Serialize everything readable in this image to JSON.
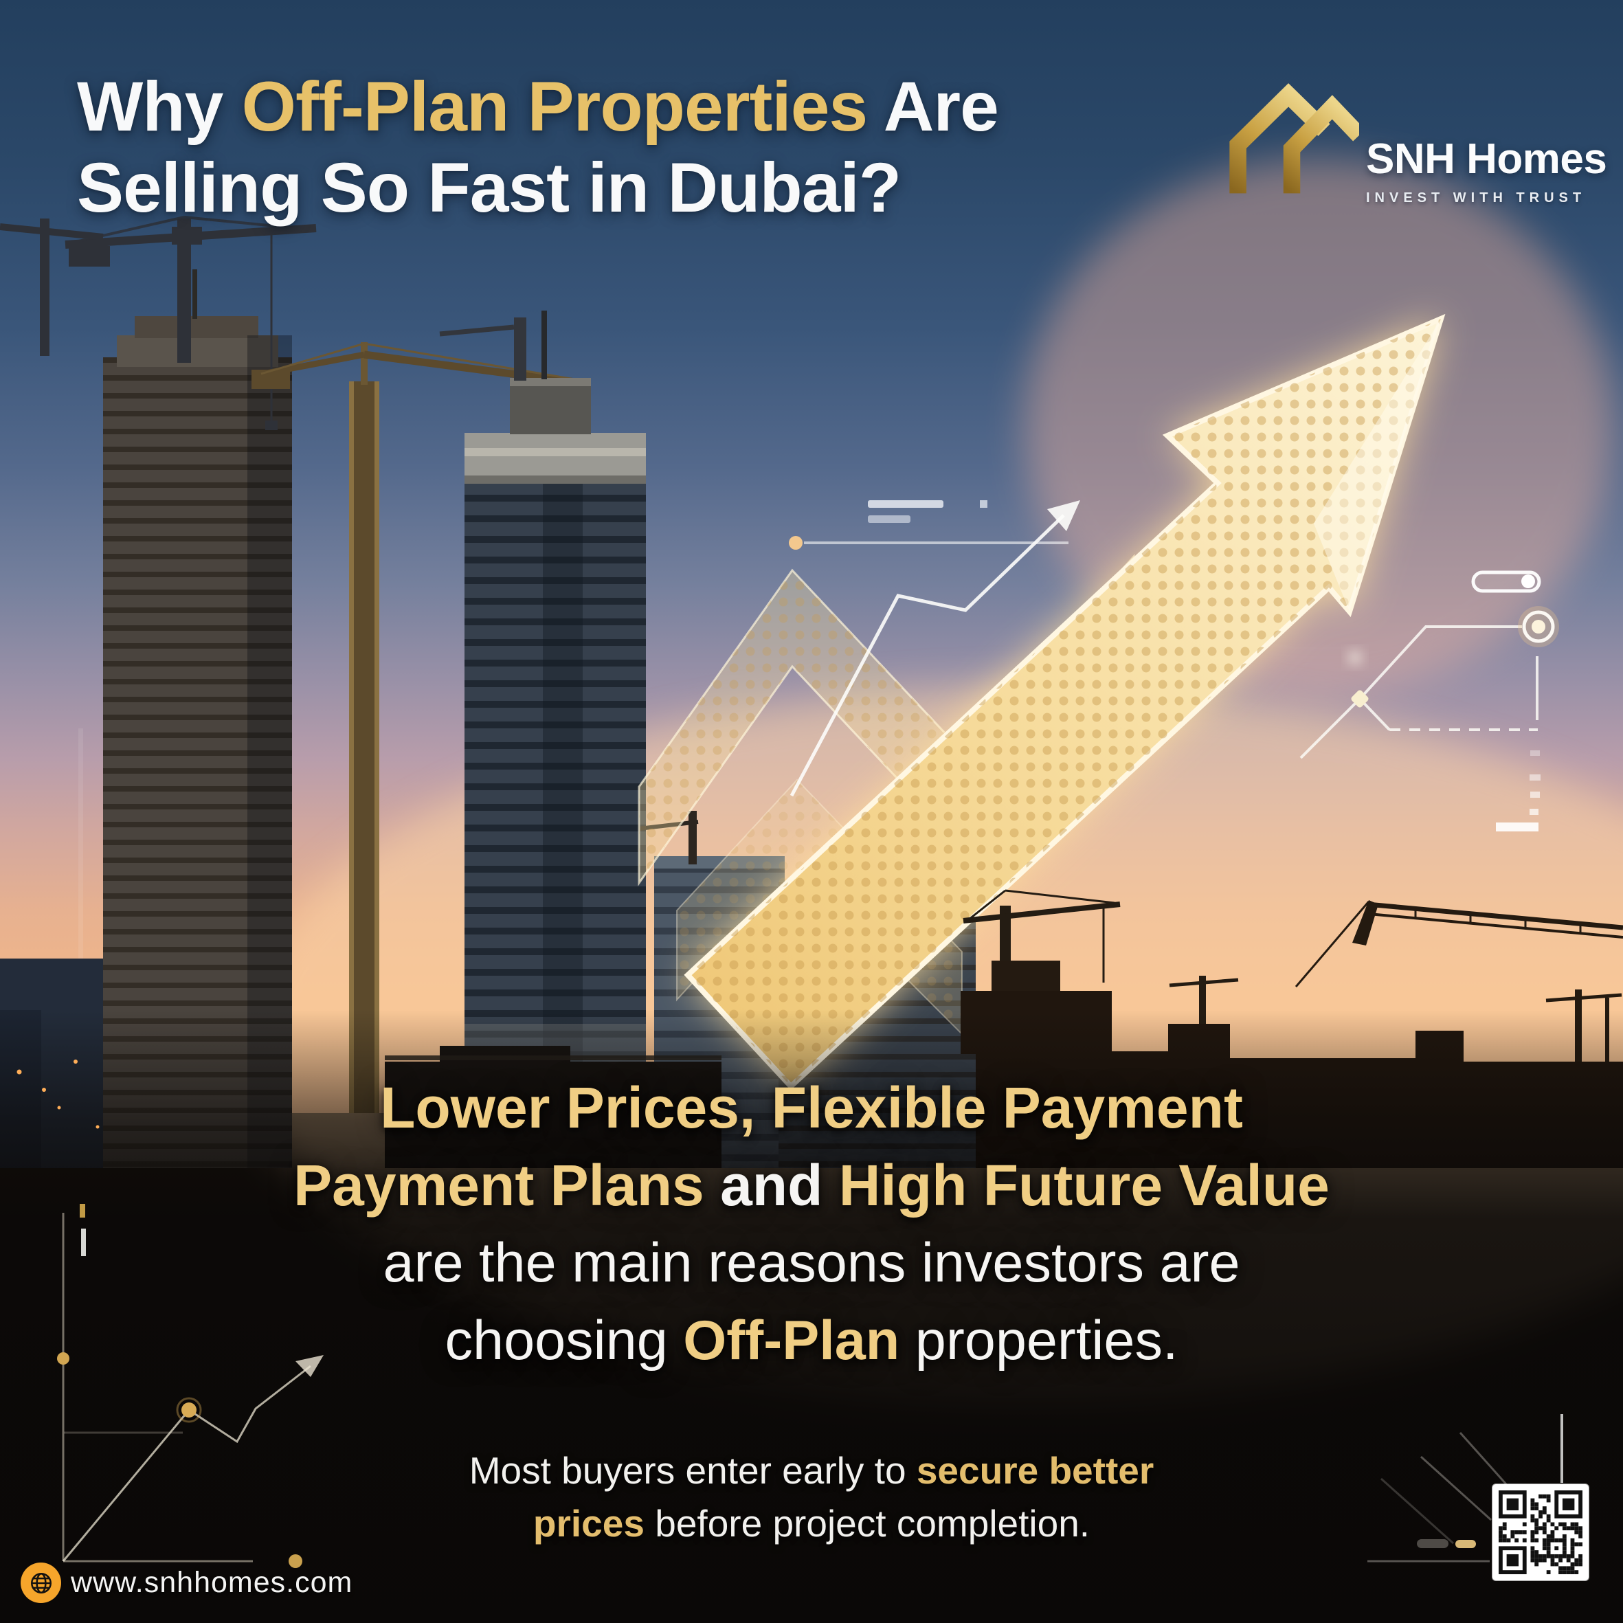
{
  "headline": {
    "line1_white1": "Why ",
    "line1_gold": "Off-Plan Properties",
    "line1_white2": " Are",
    "line2": "Selling So Fast in Dubai?"
  },
  "logo": {
    "name": "SNH Homes",
    "tagline": "INVEST WITH TRUST"
  },
  "message": {
    "line1": "Lower Prices, Flexible Payment",
    "line2_gold1": "Payment Plans",
    "line2_white": " and ",
    "line2_gold2": "High Future Value",
    "line3": "are the main reasons investors are",
    "line4_white1": "choosing ",
    "line4_gold": "Off-Plan",
    "line4_white2": " properties."
  },
  "submessage": {
    "line1_white": "Most buyers enter early to ",
    "line1_gold": "secure better",
    "line2_gold": "prices",
    "line2_white": " before project completion."
  },
  "footer": {
    "website": "www.snhhomes.com"
  },
  "colors": {
    "headline_gold": "#E7C169",
    "message_gold": "#F0CE84",
    "accent_orange": "#F6A52B",
    "arrow_gold": "#F2CF7D",
    "sky_top": "#233F5E",
    "sunset_peach": "#F2B788"
  },
  "icons": {
    "logo": "double-roof-icon",
    "globe": "globe-icon",
    "qr": "qr-code",
    "growth_arrow": "growth-arrow-icon",
    "chart_arrow": "line-chart-arrow-icon",
    "toggle": "toggle-pill-icon",
    "circuit_node": "circuit-node-icon"
  }
}
